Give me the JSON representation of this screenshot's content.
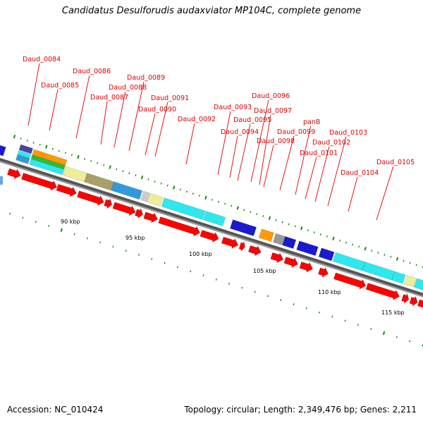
{
  "title": "Candidatus Desulforudis audaxviator MP104C, complete genome",
  "footer": {
    "accession": "Accession: NC_010424",
    "stats": "Topology: circular; Length: 2,349,476 bp; Genes: 2,211"
  },
  "colors": {
    "label": "#e00000",
    "backbone_dark": "#555555",
    "backbone_light": "#9a9a9a",
    "cds_arrow": "#ff0000",
    "tick": "#1a8a1a",
    "cog_blue": "#1a1ad0",
    "cog_cyan": "#2ee8ee",
    "cog_sky": "#3399dd",
    "cog_orange": "#ff9900",
    "cog_green": "#33bb33",
    "cog_khaki": "#eeee99",
    "cog_olive": "#aaa066",
    "cog_navy": "#4444aa",
    "cog_grey": "#999999",
    "cog_lightgrey": "#cccccc",
    "cog_light_blue": "#66aadd"
  },
  "gene_labels": [
    "Daud_0084",
    "Daud_0085",
    "Daud_0086",
    "Daud_0087",
    "Daud_0088",
    "Daud_0089",
    "Daud_0090",
    "Daud_0091",
    "Daud_0092",
    "Daud_0093",
    "Daud_0094",
    "Daud_0095",
    "Daud_0096",
    "Daud_0097",
    "Daud_0098",
    "Daud_0099",
    "panB",
    "Daud_0101",
    "Daud_0102",
    "Daud_0103",
    "Daud_0104",
    "Daud_0105"
  ],
  "scale_labels": [
    "90 kbp",
    "95 kbp",
    "100 kbp",
    "105 kbp",
    "110 kbp",
    "115 kbp"
  ]
}
